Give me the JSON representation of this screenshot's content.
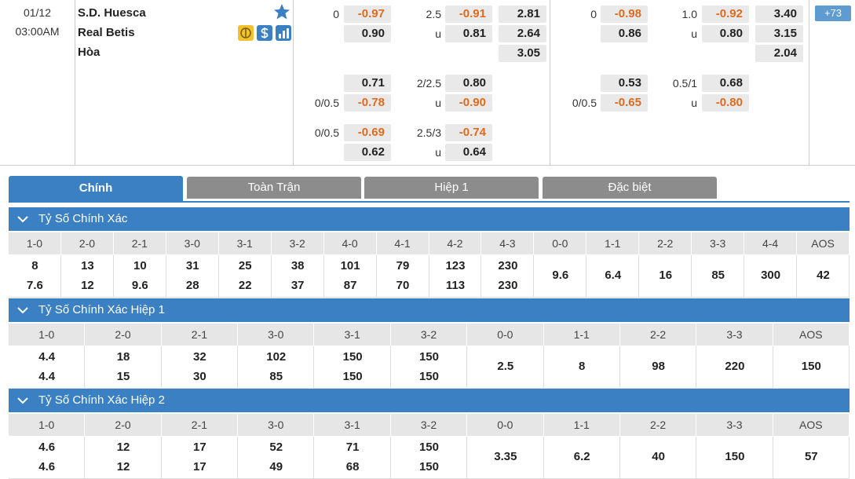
{
  "match": {
    "date": "01/12",
    "time": "03:00AM",
    "home": "S.D. Huesca",
    "away": "Real Betis",
    "draw": "Hòa"
  },
  "full_time": {
    "handicap": [
      {
        "home_line": "0",
        "home": "-0.97",
        "away": "0.90"
      },
      {
        "home": "0.71",
        "away_line": "0/0.5",
        "away": "-0.78"
      },
      {
        "home_line": "0/0.5",
        "home": "-0.69",
        "away": "0.62"
      }
    ],
    "over_under": [
      {
        "line": "2.5",
        "over": "-0.91",
        "under_label": "u",
        "under": "0.81"
      },
      {
        "line": "2/2.5",
        "over": "0.80",
        "under_label": "u",
        "under": "-0.90"
      },
      {
        "line": "2.5/3",
        "over": "-0.74",
        "under_label": "u",
        "under": "0.64"
      }
    ],
    "one_x_two": [
      "2.81",
      "2.64",
      "3.05"
    ]
  },
  "first_half": {
    "handicap": [
      {
        "home_line": "0",
        "home": "-0.98",
        "away": "0.86"
      },
      {
        "home": "0.53",
        "away_line": "0/0.5",
        "away": "-0.65"
      }
    ],
    "over_under": [
      {
        "line": "1.0",
        "over": "-0.92",
        "under_label": "u",
        "under": "0.80"
      },
      {
        "line": "0.5/1",
        "over": "0.68",
        "under_label": "u",
        "under": "-0.80"
      }
    ],
    "one_x_two": [
      "3.40",
      "3.15",
      "2.04"
    ]
  },
  "more_badge": "+73",
  "tabs": [
    "Chính",
    "Toàn Trận",
    "Hiệp 1",
    "Đặc biệt"
  ],
  "sections": [
    {
      "title": "Tỷ Số Chính Xác",
      "headers": [
        "1-0",
        "2-0",
        "2-1",
        "3-0",
        "3-1",
        "3-2",
        "4-0",
        "4-1",
        "4-2",
        "4-3",
        "0-0",
        "1-1",
        "2-2",
        "3-3",
        "4-4",
        "AOS"
      ],
      "cells": [
        [
          "8",
          "7.6"
        ],
        [
          "13",
          "12"
        ],
        [
          "10",
          "9.6"
        ],
        [
          "31",
          "28"
        ],
        [
          "25",
          "22"
        ],
        [
          "38",
          "37"
        ],
        [
          "101",
          "87"
        ],
        [
          "79",
          "70"
        ],
        [
          "123",
          "113"
        ],
        [
          "230",
          "230"
        ],
        "9.6",
        "6.4",
        "16",
        "85",
        "300",
        "42"
      ]
    },
    {
      "title": "Tỷ Số Chính Xác Hiệp 1",
      "headers": [
        "1-0",
        "2-0",
        "2-1",
        "3-0",
        "3-1",
        "3-2",
        "0-0",
        "1-1",
        "2-2",
        "3-3",
        "AOS"
      ],
      "cells": [
        [
          "4.4",
          "4.4"
        ],
        [
          "18",
          "15"
        ],
        [
          "32",
          "30"
        ],
        [
          "102",
          "85"
        ],
        [
          "150",
          "150"
        ],
        [
          "150",
          "150"
        ],
        "2.5",
        "8",
        "98",
        "220",
        "150"
      ]
    },
    {
      "title": "Tỷ Số Chính Xác Hiệp 2",
      "headers": [
        "1-0",
        "2-0",
        "2-1",
        "3-0",
        "3-1",
        "3-2",
        "0-0",
        "1-1",
        "2-2",
        "3-3",
        "AOS"
      ],
      "cells": [
        [
          "4.6",
          "4.6"
        ],
        [
          "12",
          "12"
        ],
        [
          "17",
          "17"
        ],
        [
          "52",
          "49"
        ],
        [
          "71",
          "68"
        ],
        [
          "150",
          "150"
        ],
        "3.35",
        "6.2",
        "40",
        "150",
        "57"
      ]
    }
  ]
}
